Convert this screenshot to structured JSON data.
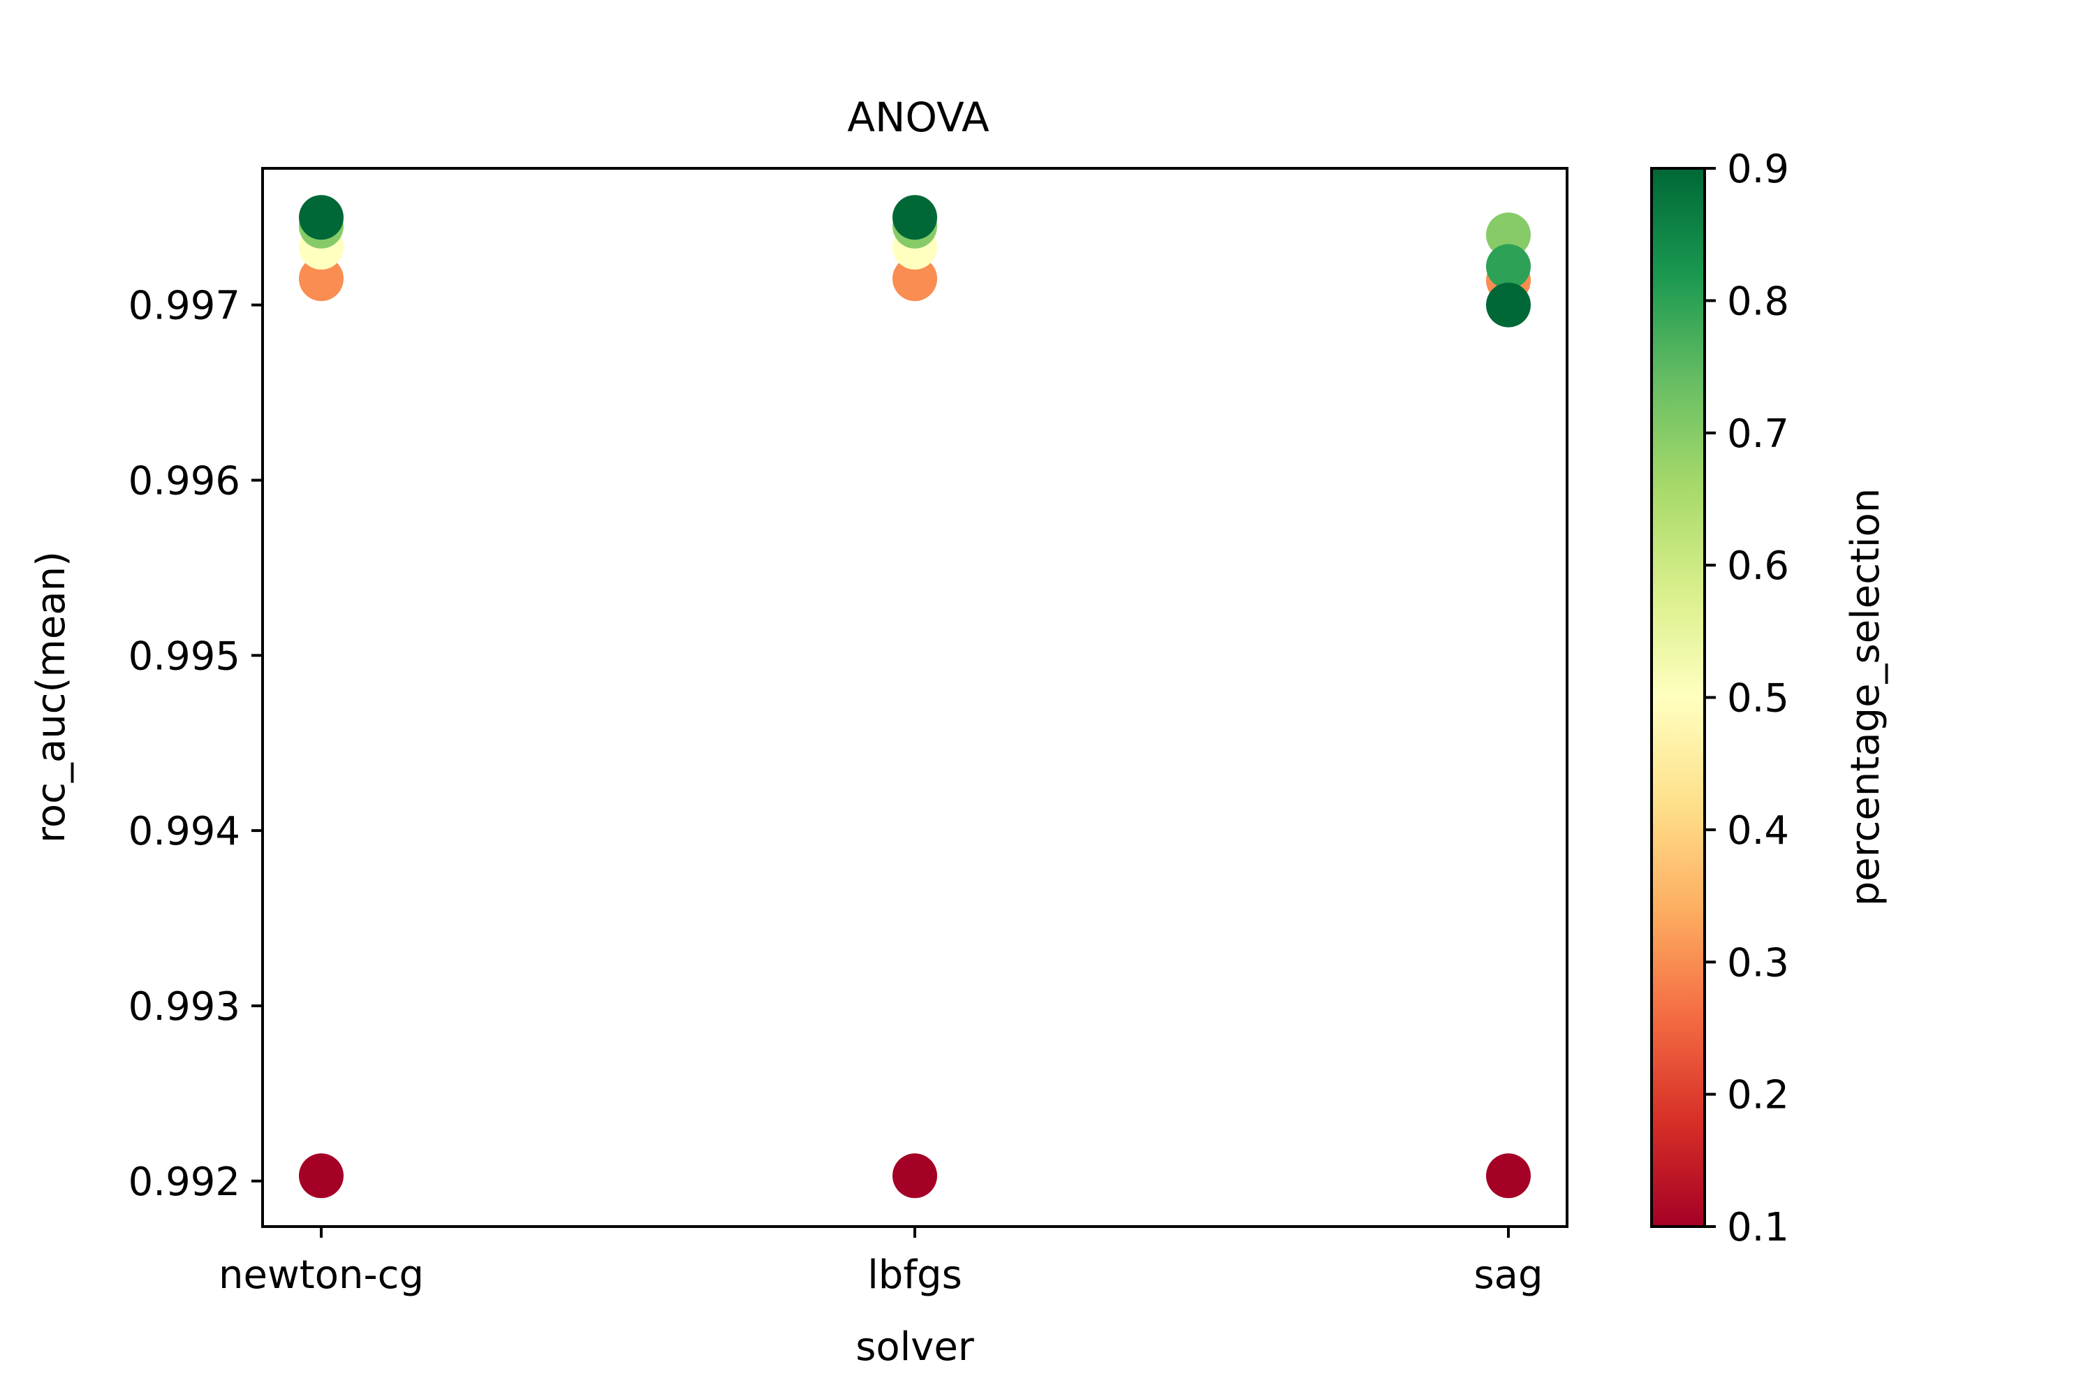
{
  "chart_data": {
    "type": "scatter",
    "title": "ANOVA",
    "xlabel": "solver",
    "ylabel": "roc_auc(mean)",
    "categories": [
      "newton-cg",
      "lbfgs",
      "sag"
    ],
    "ylim": [
      0.99174,
      0.99778
    ],
    "yticks": [
      0.992,
      0.993,
      0.994,
      0.995,
      0.996,
      0.997
    ],
    "ytick_labels": [
      "0.992",
      "0.993",
      "0.994",
      "0.995",
      "0.996",
      "0.997"
    ],
    "grid": false,
    "legend": null,
    "colorbar": {
      "label": "percentage_selection",
      "colormap": "RdYlGn",
      "range": [
        0.1,
        0.9
      ],
      "ticks": [
        0.1,
        0.2,
        0.3,
        0.4,
        0.5,
        0.6,
        0.7,
        0.8,
        0.9
      ],
      "tick_labels": [
        "0.1",
        "0.2",
        "0.3",
        "0.4",
        "0.5",
        "0.6",
        "0.7",
        "0.8",
        "0.9"
      ],
      "stops": [
        "#a50026",
        "#d73027",
        "#f46d43",
        "#fdae61",
        "#fee08b",
        "#ffffbf",
        "#d9ef8b",
        "#a6d96a",
        "#66bd63",
        "#1a9850",
        "#006837"
      ]
    },
    "points": [
      {
        "x": "newton-cg",
        "y": 0.99203,
        "c": 0.1
      },
      {
        "x": "newton-cg",
        "y": 0.99715,
        "c": 0.3
      },
      {
        "x": "newton-cg",
        "y": 0.99733,
        "c": 0.5
      },
      {
        "x": "newton-cg",
        "y": 0.99745,
        "c": 0.7
      },
      {
        "x": "newton-cg",
        "y": 0.9975,
        "c": 0.9
      },
      {
        "x": "lbfgs",
        "y": 0.99203,
        "c": 0.1
      },
      {
        "x": "lbfgs",
        "y": 0.99715,
        "c": 0.3
      },
      {
        "x": "lbfgs",
        "y": 0.99733,
        "c": 0.5
      },
      {
        "x": "lbfgs",
        "y": 0.99745,
        "c": 0.7
      },
      {
        "x": "lbfgs",
        "y": 0.9975,
        "c": 0.9
      },
      {
        "x": "sag",
        "y": 0.99203,
        "c": 0.1
      },
      {
        "x": "sag",
        "y": 0.99714,
        "c": 0.3
      },
      {
        "x": "sag",
        "y": 0.9974,
        "c": 0.7
      },
      {
        "x": "sag",
        "y": 0.99722,
        "c": 0.8
      },
      {
        "x": "sag",
        "y": 0.997,
        "c": 0.9
      }
    ]
  }
}
